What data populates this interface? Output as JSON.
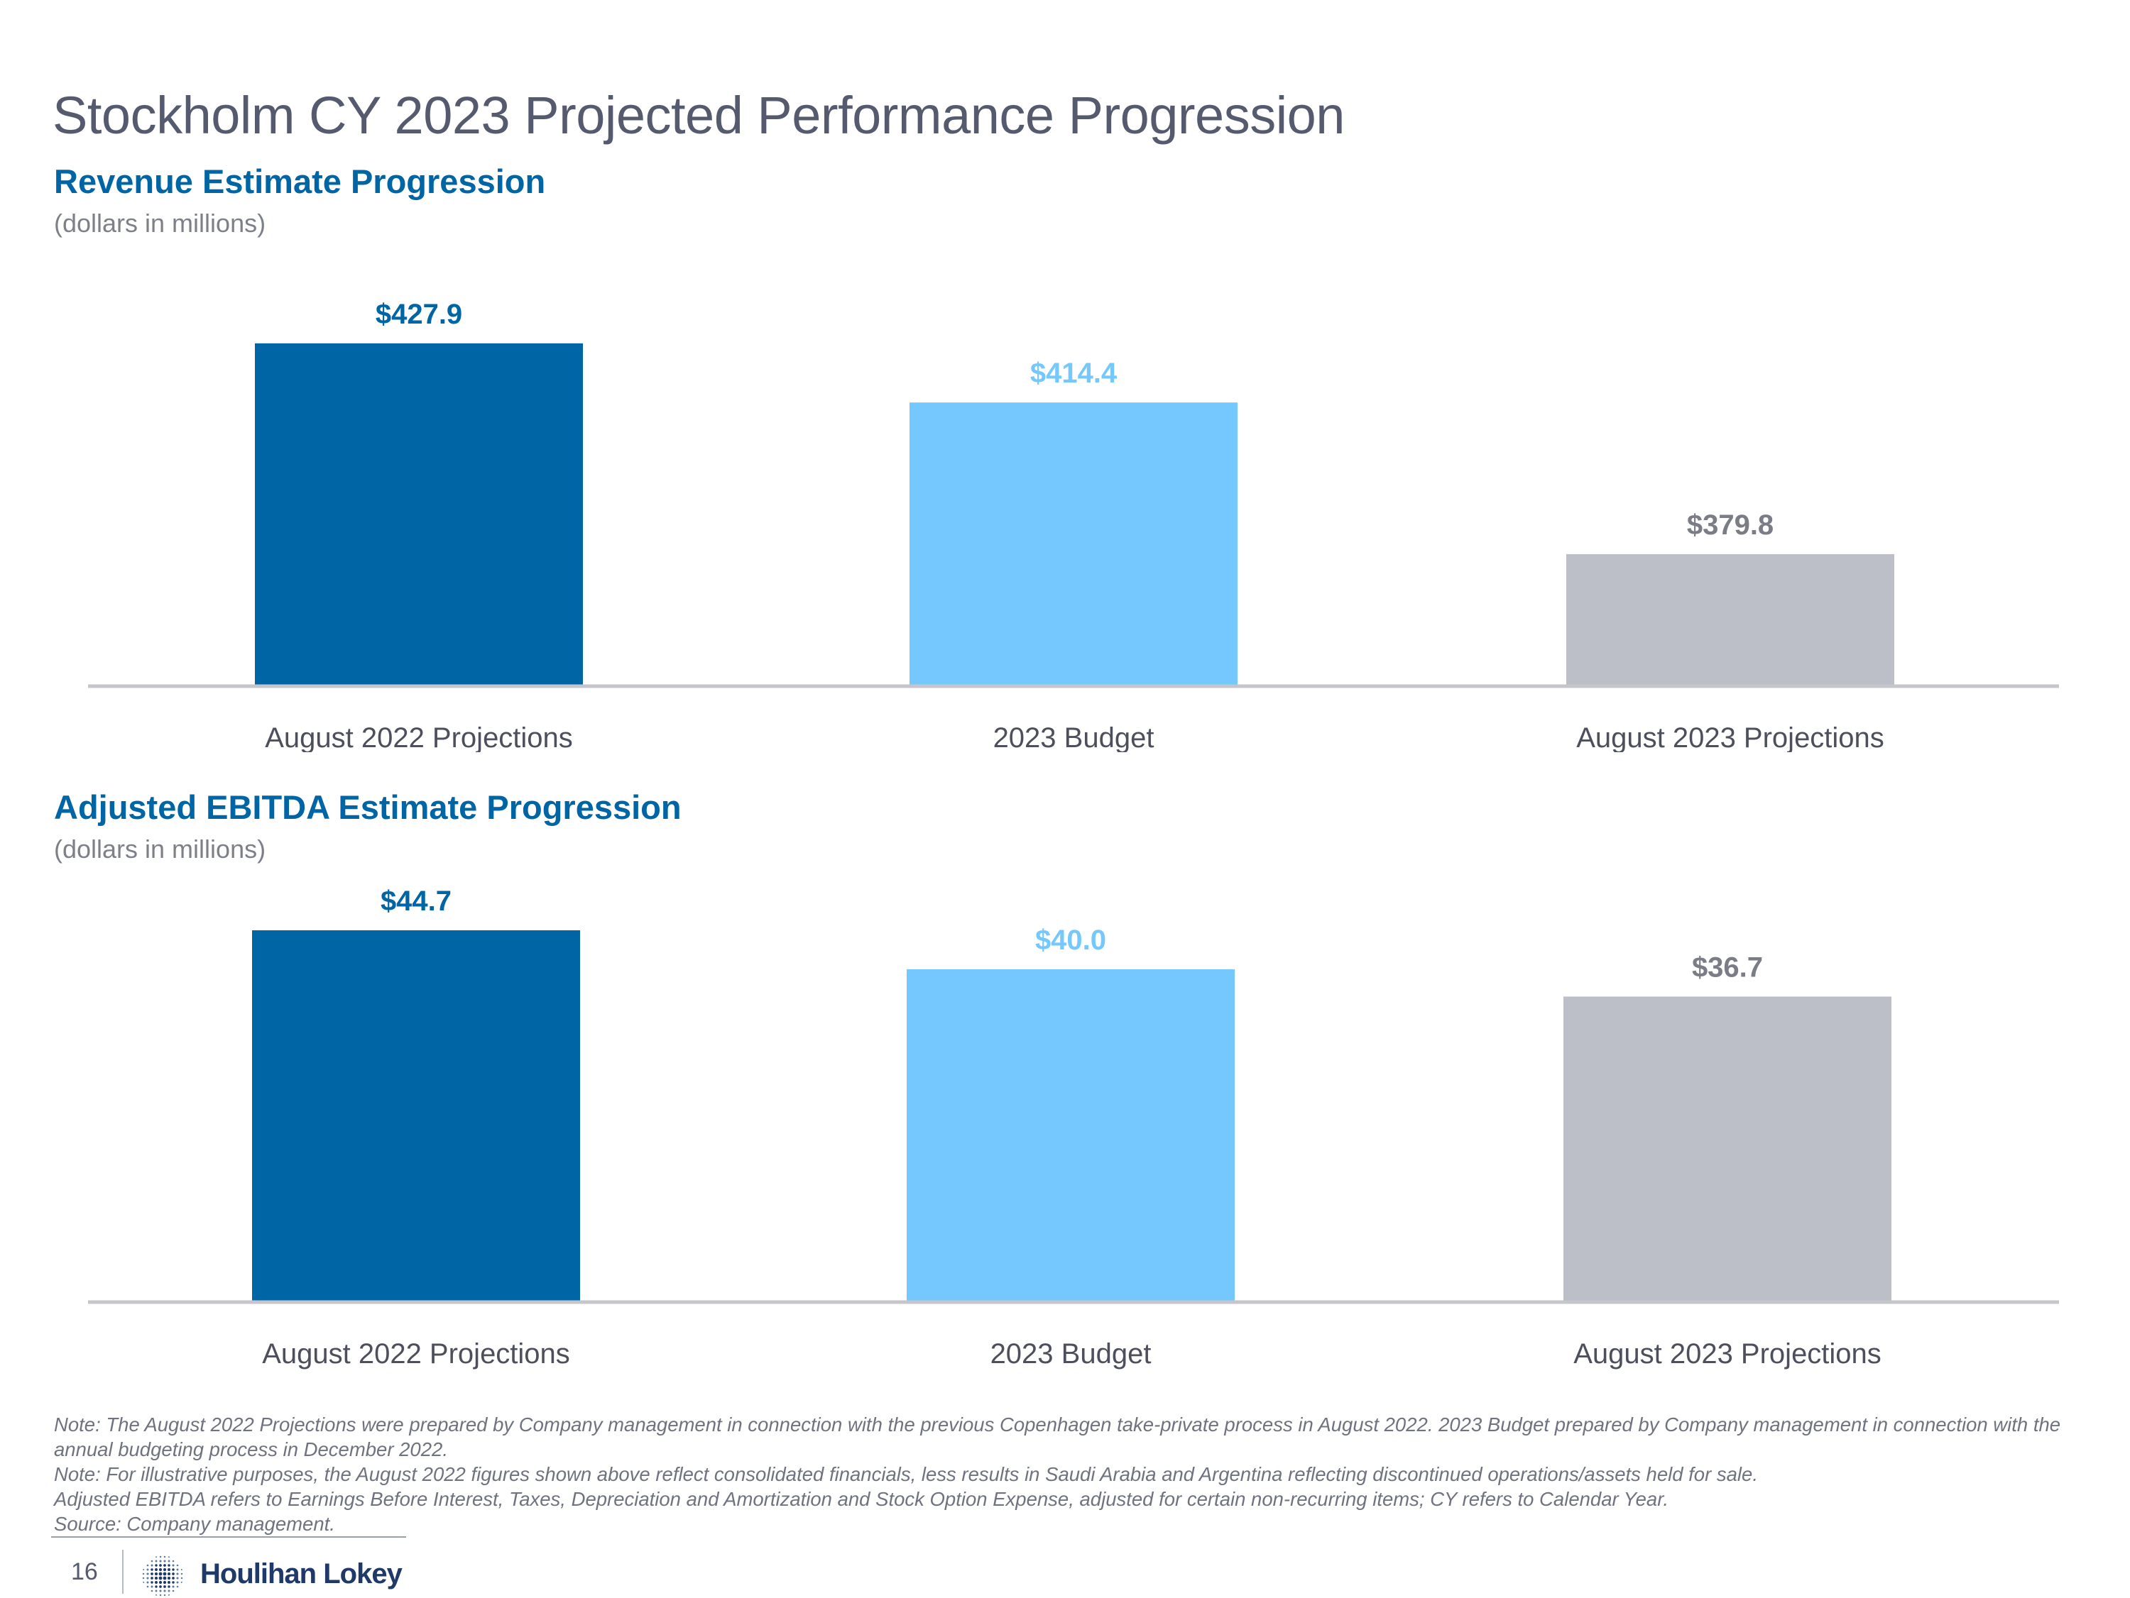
{
  "page": {
    "title": "Stockholm CY 2023 Projected Performance Progression",
    "page_number": "16",
    "brand": "Houlihan Lokey"
  },
  "colors": {
    "title": "#555a6e",
    "accent": "#0065a4",
    "bar_dark_blue": "#0065a4",
    "bar_light_blue": "#75c8fd",
    "bar_gray": "#bcbfc7",
    "label_gray": "#7a7d85",
    "axis": "#c4c6cb"
  },
  "sections": {
    "revenue": {
      "title": "Revenue Estimate Progression",
      "units": "(dollars in millions)"
    },
    "ebitda": {
      "title": "Adjusted EBITDA Estimate Progression",
      "units": "(dollars in millions)"
    }
  },
  "chart_data": [
    {
      "type": "bar",
      "title": "Revenue Estimate Progression",
      "subtitle": "(dollars in millions)",
      "categories": [
        "August 2022 Projections",
        "2023 Budget",
        "August 2023 Projections"
      ],
      "values": [
        427.9,
        414.4,
        379.8
      ],
      "labels": [
        "$427.9",
        "$414.4",
        "$379.8"
      ],
      "ylim": [
        350,
        435
      ],
      "grid": false,
      "legend": "none"
    },
    {
      "type": "bar",
      "title": "Adjusted EBITDA Estimate Progression",
      "subtitle": "(dollars in millions)",
      "categories": [
        "August 2022 Projections",
        "2023 Budget",
        "August 2023 Projections"
      ],
      "values": [
        44.7,
        40.0,
        36.7
      ],
      "labels": [
        "$44.7",
        "$40.0",
        "$36.7"
      ],
      "ylim": [
        0,
        46.5
      ],
      "grid": false,
      "legend": "none"
    }
  ],
  "footnotes": [
    "Note: The August 2022 Projections were prepared by Company management in connection with the previous Copenhagen take-private process in August 2022. 2023 Budget prepared by Company management in connection with the annual budgeting process in December 2022.",
    "Note: For illustrative purposes, the August 2022 figures shown above reflect consolidated financials, less results in Saudi Arabia and Argentina reflecting discontinued operations/assets held for sale.",
    "Adjusted EBITDA refers to Earnings Before Interest, Taxes, Depreciation and Amortization and Stock Option Expense, adjusted for certain non-recurring items; CY refers to Calendar Year.",
    "Source: Company management."
  ]
}
